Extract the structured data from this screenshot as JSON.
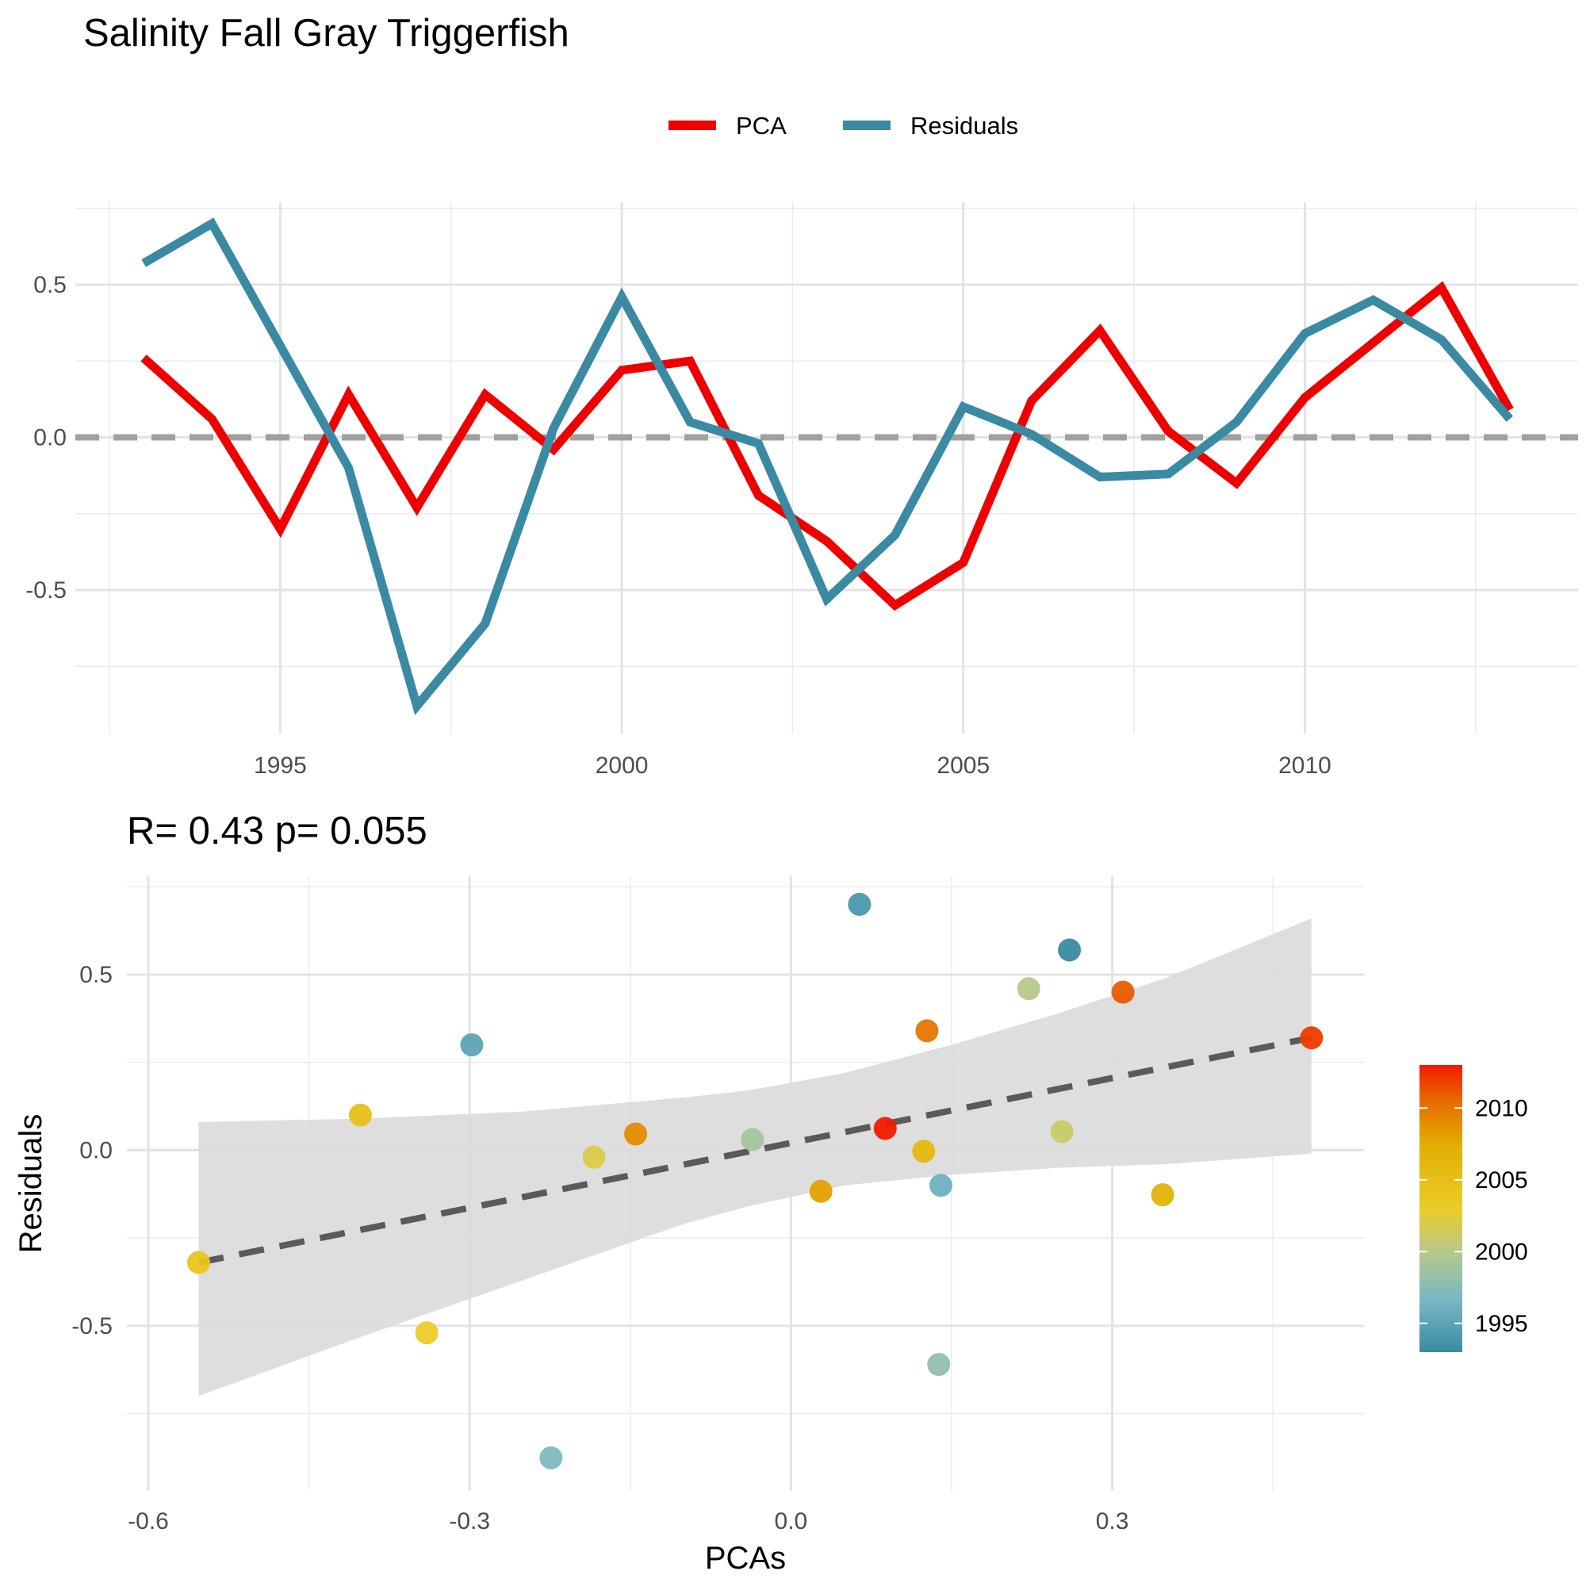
{
  "title": "Salinity Fall Gray Triggerfish",
  "subtitle": "R= 0.43  p= 0.055",
  "colors": {
    "pca": "#EE0000",
    "residuals": "#3A8AA3",
    "zero_line": "#A0A0A0",
    "fit_line": "#5A5A5A",
    "ribbon": "#DADADA"
  },
  "chart_data": [
    {
      "type": "line",
      "legend": {
        "position": "top",
        "entries": [
          "PCA",
          "Residuals"
        ]
      },
      "grid": true,
      "xlim": [
        1992.0,
        2014.0
      ],
      "ylim": [
        -0.97,
        0.77
      ],
      "xticks": [
        1995,
        2000,
        2005,
        2010
      ],
      "xtick_labels": [
        "1995",
        "2000",
        "2005",
        "2010"
      ],
      "yticks": [
        -0.5,
        0.0,
        0.5
      ],
      "ytick_labels": [
        "-0.5",
        "0.0",
        "0.5"
      ],
      "x": [
        1993,
        1994,
        1995,
        1996,
        1997,
        1998,
        1999,
        2000,
        2001,
        2002,
        2003,
        2004,
        2005,
        2006,
        2007,
        2008,
        2009,
        2010,
        2011,
        2012,
        2013
      ],
      "series": [
        {
          "name": "PCA",
          "values": [
            0.26,
            0.06,
            -0.3,
            0.14,
            -0.23,
            0.14,
            -0.04,
            0.22,
            0.25,
            -0.19,
            -0.34,
            -0.55,
            -0.41,
            0.12,
            0.35,
            0.02,
            -0.15,
            0.13,
            0.31,
            0.49,
            0.09
          ]
        },
        {
          "name": "Residuals",
          "values": [
            0.57,
            0.7,
            0.3,
            -0.1,
            -0.88,
            -0.61,
            0.03,
            0.46,
            0.05,
            -0.02,
            -0.53,
            -0.32,
            0.1,
            0.01,
            -0.13,
            -0.12,
            0.05,
            0.34,
            0.45,
            0.32,
            0.06
          ]
        }
      ],
      "reference_line": 0.0
    },
    {
      "type": "scatter",
      "xlabel": "PCAs",
      "ylabel": "Residuals",
      "grid": true,
      "xlim": [
        -0.62,
        0.535
      ],
      "ylim": [
        -0.97,
        0.78
      ],
      "xticks": [
        -0.6,
        -0.3,
        0.0,
        0.3
      ],
      "xtick_labels": [
        "-0.6",
        "-0.3",
        "0.0",
        "0.3"
      ],
      "yticks": [
        -0.5,
        0.0,
        0.5
      ],
      "ytick_labels": [
        "-0.5",
        "0.0",
        "0.5"
      ],
      "colorbar": {
        "min": 1993,
        "max": 2013,
        "ticks": [
          1995,
          2000,
          2005,
          2010
        ],
        "tick_labels": [
          "1995",
          "2000",
          "2005",
          "2010"
        ]
      },
      "points": [
        {
          "x": 0.26,
          "y": 0.57,
          "year": 1993
        },
        {
          "x": 0.064,
          "y": 0.7,
          "year": 1994
        },
        {
          "x": -0.298,
          "y": 0.3,
          "year": 1995
        },
        {
          "x": 0.14,
          "y": -0.1,
          "year": 1996
        },
        {
          "x": -0.224,
          "y": -0.876,
          "year": 1997
        },
        {
          "x": 0.138,
          "y": -0.61,
          "year": 1998
        },
        {
          "x": -0.036,
          "y": 0.03,
          "year": 1999
        },
        {
          "x": 0.222,
          "y": 0.46,
          "year": 2000
        },
        {
          "x": 0.253,
          "y": 0.053,
          "year": 2001
        },
        {
          "x": -0.184,
          "y": -0.02,
          "year": 2002
        },
        {
          "x": -0.34,
          "y": -0.52,
          "year": 2003
        },
        {
          "x": -0.553,
          "y": -0.32,
          "year": 2004
        },
        {
          "x": -0.402,
          "y": 0.1,
          "year": 2005
        },
        {
          "x": 0.124,
          "y": -0.003,
          "year": 2006
        },
        {
          "x": 0.347,
          "y": -0.127,
          "year": 2007
        },
        {
          "x": 0.028,
          "y": -0.117,
          "year": 2008
        },
        {
          "x": -0.145,
          "y": 0.046,
          "year": 2009
        },
        {
          "x": 0.127,
          "y": 0.34,
          "year": 2010
        },
        {
          "x": 0.31,
          "y": 0.45,
          "year": 2011
        },
        {
          "x": 0.486,
          "y": 0.32,
          "year": 2012
        },
        {
          "x": 0.088,
          "y": 0.062,
          "year": 2013
        }
      ],
      "fit_line": {
        "x": [
          -0.553,
          0.486
        ],
        "y": [
          -0.32,
          0.32
        ]
      },
      "confidence_band": {
        "x": [
          -0.553,
          -0.4,
          -0.25,
          -0.1,
          -0.04,
          0.05,
          0.15,
          0.25,
          0.35,
          0.486
        ],
        "upper": [
          0.08,
          0.09,
          0.11,
          0.15,
          0.17,
          0.22,
          0.3,
          0.39,
          0.49,
          0.66
        ],
        "lower": [
          -0.7,
          -0.53,
          -0.37,
          -0.21,
          -0.16,
          -0.1,
          -0.07,
          -0.05,
          -0.04,
          -0.01
        ]
      }
    }
  ]
}
